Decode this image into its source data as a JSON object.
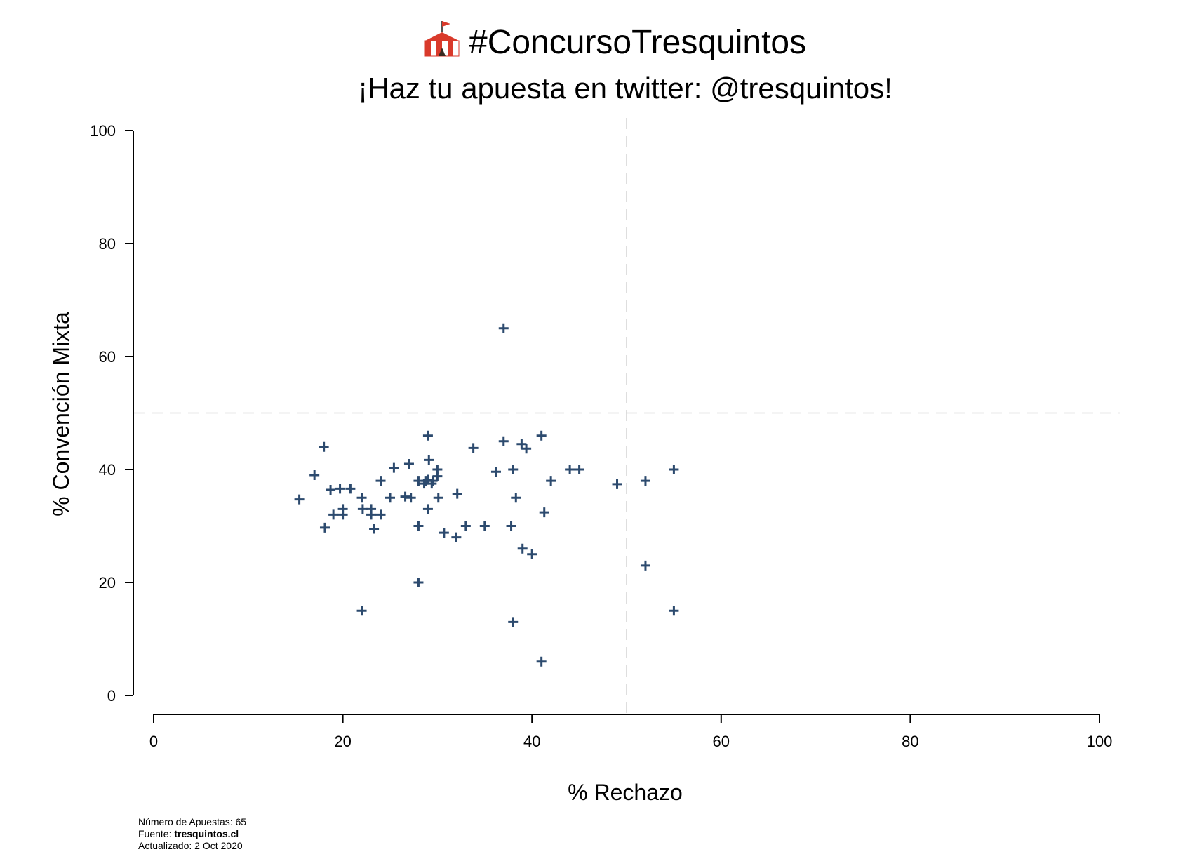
{
  "chart_data": {
    "type": "scatter",
    "title_icon": "circus-tent-icon",
    "title": "#ConcursoTresquintos",
    "subtitle": "¡Haz tu apuesta en twitter: @tresquintos!",
    "xlabel": "% Rechazo",
    "ylabel": "% Convención Mixta",
    "xlim": [
      0,
      100
    ],
    "ylim": [
      0,
      100
    ],
    "xticks": [
      0,
      20,
      40,
      60,
      80,
      100
    ],
    "yticks": [
      0,
      20,
      40,
      60,
      80,
      100
    ],
    "reference_lines": {
      "x": 50,
      "y": 50,
      "style": "dashed"
    },
    "grid": false,
    "marker": "plus",
    "marker_color": "#2c4a6e",
    "x": [
      37,
      41,
      29,
      37,
      18,
      38.9,
      33.8,
      39.4,
      29.1,
      17,
      27,
      25.4,
      30,
      36.2,
      38,
      44,
      45,
      55,
      30,
      18.7,
      19.7,
      20.8,
      24,
      15.4,
      22,
      26.6,
      27.2,
      25,
      28,
      28.8,
      29.5,
      28.6,
      29.4,
      32.1,
      38.3,
      42,
      49,
      52,
      30.1,
      20,
      23,
      19,
      20,
      22.1,
      23,
      24,
      29,
      41.3,
      18.1,
      23.3,
      28,
      30.7,
      32,
      33,
      35,
      37.8,
      39,
      40,
      52,
      28,
      22,
      38,
      55,
      41,
      29
    ],
    "y": [
      65,
      46,
      46,
      45,
      44,
      44.5,
      43.8,
      43.7,
      41.7,
      39,
      41,
      40.3,
      40,
      39.6,
      40,
      40,
      40,
      40,
      38.8,
      36.4,
      36.6,
      36.6,
      38,
      34.7,
      35,
      35.2,
      35,
      35,
      38,
      38,
      38,
      37.5,
      37.5,
      35.7,
      35,
      38,
      37.4,
      38,
      35,
      33,
      33,
      32,
      32,
      33,
      32,
      32,
      33,
      32.4,
      29.7,
      29.5,
      30,
      28.8,
      28,
      30,
      30,
      30,
      26,
      25,
      23,
      20,
      15,
      13,
      15,
      6,
      38.2
    ]
  },
  "footer": {
    "count_label": "Número de Apuestas: 65",
    "source_prefix": "Fuente: ",
    "source_name": "tresquintos.cl",
    "updated_label": "Actualizado: 2 Oct 2020"
  }
}
